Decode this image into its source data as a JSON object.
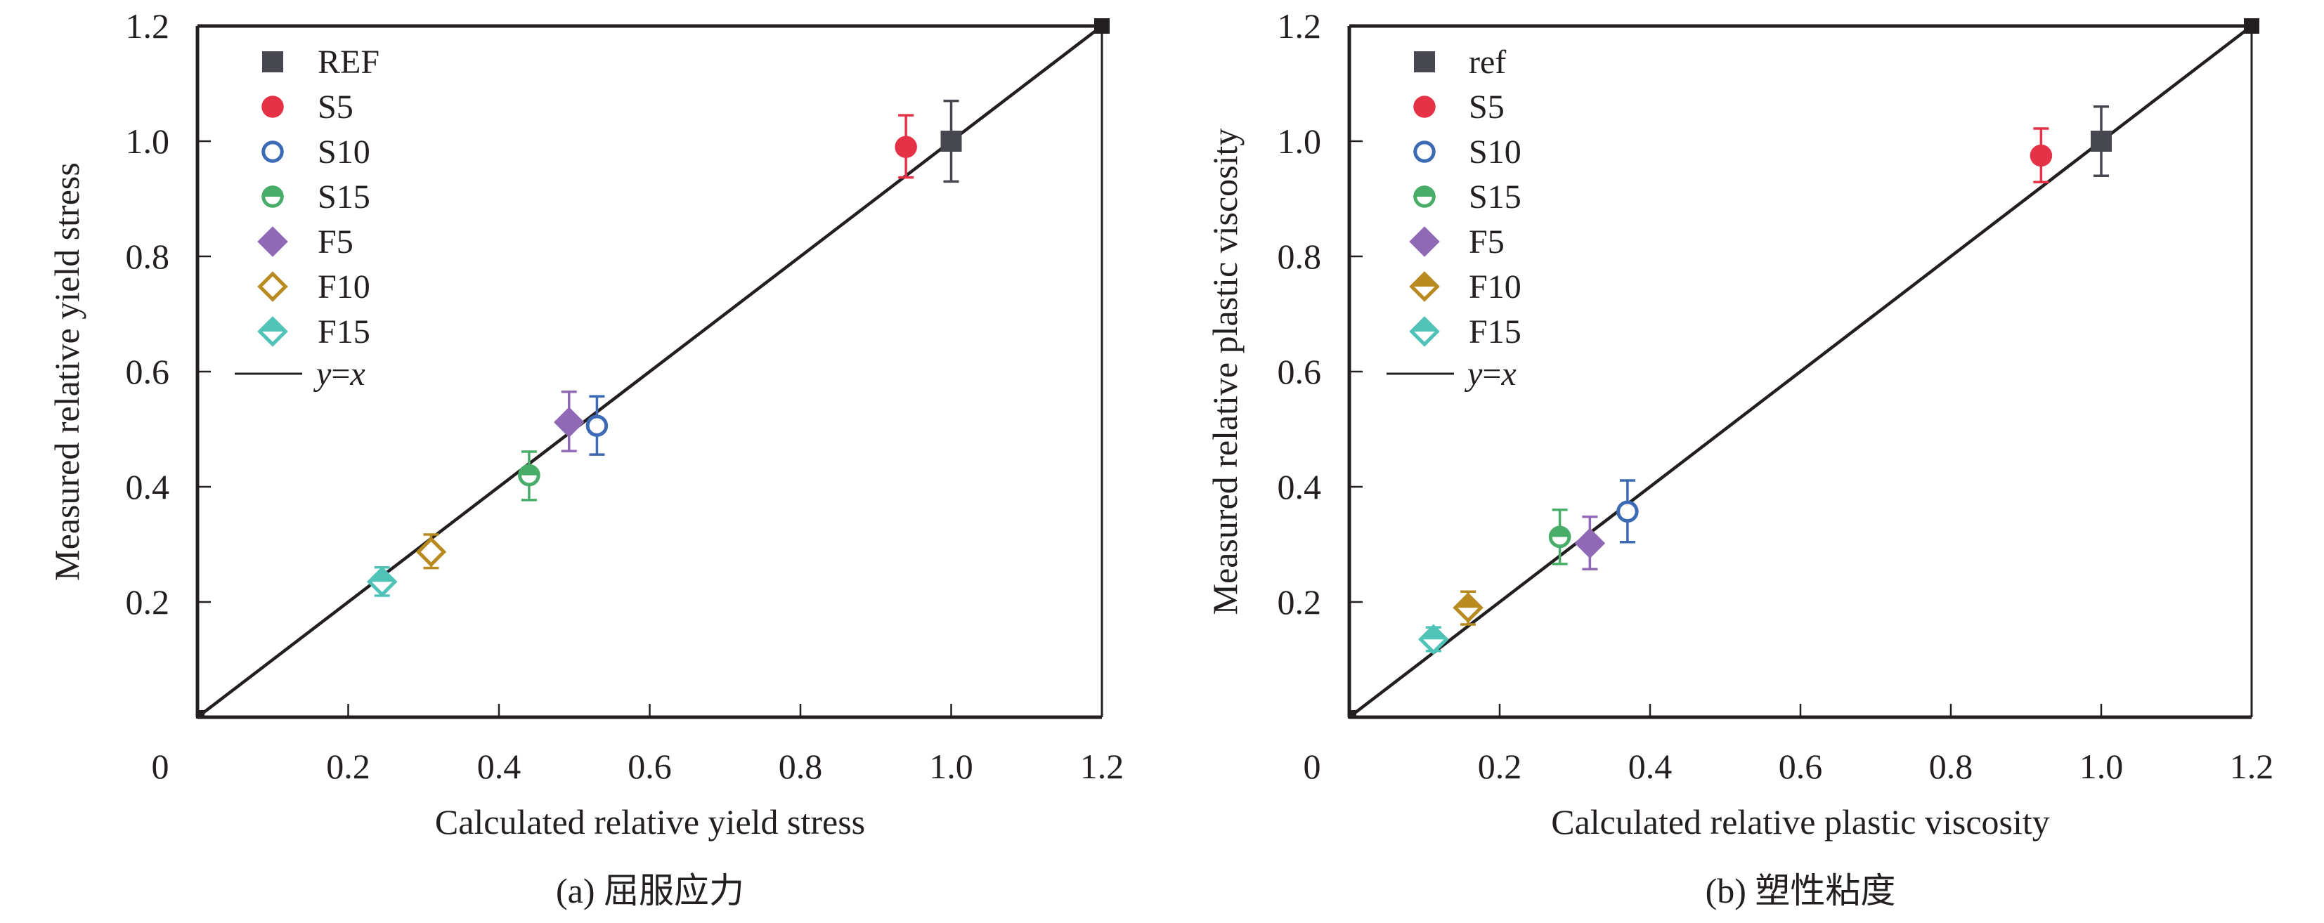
{
  "chart_data": [
    {
      "id": "a",
      "type": "scatter",
      "caption": "(a) 屈服应力",
      "xlabel": "Calculated relative yield stress",
      "ylabel": "Measured relative yield stress",
      "xlim": [
        0,
        1.2
      ],
      "ylim": [
        0,
        1.2
      ],
      "x_ticks": [
        "0.2",
        "0.4",
        "0.6",
        "0.8",
        "1.0",
        "1.2"
      ],
      "x_tick_values": [
        0.2,
        0.4,
        0.6,
        0.8,
        1.0,
        1.2
      ],
      "y_ticks": [
        "0.2",
        "0.4",
        "0.6",
        "0.8",
        "1.0",
        "1.2"
      ],
      "y_tick_values": [
        0.2,
        0.4,
        0.6,
        0.8,
        1.0,
        1.2
      ],
      "origin_label": "0",
      "grid": false,
      "legend_position": "top-left",
      "reference_line": {
        "label_y": "y",
        "label_eq": "=",
        "label_x": "x",
        "from": [
          0,
          0
        ],
        "to": [
          1.2,
          1.2
        ]
      },
      "series": [
        {
          "name": "REF",
          "marker": "square",
          "fill": "full",
          "color": "#47474f",
          "x": 1.0,
          "y": 1.0,
          "err_low": 0.93,
          "err_high": 1.07
        },
        {
          "name": "S5",
          "marker": "circle",
          "fill": "full",
          "color": "#e63246",
          "x": 0.94,
          "y": 0.99,
          "err_low": 0.937,
          "err_high": 1.045
        },
        {
          "name": "S10",
          "marker": "circle",
          "fill": "none",
          "color": "#3d6ab4",
          "x": 0.53,
          "y": 0.506,
          "err_low": 0.456,
          "err_high": 0.557
        },
        {
          "name": "S15",
          "marker": "circle",
          "fill": "top",
          "color": "#47ad68",
          "x": 0.44,
          "y": 0.42,
          "err_low": 0.377,
          "err_high": 0.461
        },
        {
          "name": "F5",
          "marker": "diamond",
          "fill": "full",
          "color": "#9069b6",
          "x": 0.493,
          "y": 0.512,
          "err_low": 0.462,
          "err_high": 0.565
        },
        {
          "name": "F10",
          "marker": "diamond",
          "fill": "none",
          "color": "#b88a20",
          "x": 0.31,
          "y": 0.287,
          "err_low": 0.259,
          "err_high": 0.317
        },
        {
          "name": "F15",
          "marker": "diamond",
          "fill": "top",
          "color": "#4fc3b7",
          "x": 0.245,
          "y": 0.235,
          "err_low": 0.211,
          "err_high": 0.26
        }
      ]
    },
    {
      "id": "b",
      "type": "scatter",
      "caption": "(b) 塑性粘度",
      "xlabel": "Calculated relative plastic viscosity",
      "ylabel": "Measured relative plastic viscosity",
      "xlim": [
        0,
        1.2
      ],
      "ylim": [
        0,
        1.2
      ],
      "x_ticks": [
        "0.2",
        "0.4",
        "0.6",
        "0.8",
        "1.0",
        "1.2"
      ],
      "x_tick_values": [
        0.2,
        0.4,
        0.6,
        0.8,
        1.0,
        1.2
      ],
      "y_ticks": [
        "0.2",
        "0.4",
        "0.6",
        "0.8",
        "1.0",
        "1.2"
      ],
      "y_tick_values": [
        0.2,
        0.4,
        0.6,
        0.8,
        1.0,
        1.2
      ],
      "origin_label": "0",
      "grid": false,
      "legend_position": "top-left",
      "reference_line": {
        "label_y": "y",
        "label_eq": "=",
        "label_x": "x",
        "from": [
          0,
          0
        ],
        "to": [
          1.2,
          1.2
        ]
      },
      "series": [
        {
          "name": "ref",
          "marker": "square",
          "fill": "full",
          "color": "#47474f",
          "x": 1.0,
          "y": 1.0,
          "err_low": 0.94,
          "err_high": 1.06
        },
        {
          "name": "S5",
          "marker": "circle",
          "fill": "full",
          "color": "#e63246",
          "x": 0.92,
          "y": 0.975,
          "err_low": 0.929,
          "err_high": 1.022
        },
        {
          "name": "S10",
          "marker": "circle",
          "fill": "none",
          "color": "#3d6ab4",
          "x": 0.37,
          "y": 0.357,
          "err_low": 0.304,
          "err_high": 0.411
        },
        {
          "name": "S15",
          "marker": "circle",
          "fill": "top",
          "color": "#47ad68",
          "x": 0.28,
          "y": 0.313,
          "err_low": 0.266,
          "err_high": 0.36
        },
        {
          "name": "F5",
          "marker": "diamond",
          "fill": "full",
          "color": "#9069b6",
          "x": 0.32,
          "y": 0.302,
          "err_low": 0.257,
          "err_high": 0.348
        },
        {
          "name": "F10",
          "marker": "diamond",
          "fill": "top",
          "color": "#b88a20",
          "x": 0.158,
          "y": 0.19,
          "err_low": 0.161,
          "err_high": 0.218
        },
        {
          "name": "F15",
          "marker": "diamond",
          "fill": "top",
          "color": "#4fc3b7",
          "x": 0.112,
          "y": 0.135,
          "err_low": 0.115,
          "err_high": 0.156
        }
      ]
    }
  ]
}
